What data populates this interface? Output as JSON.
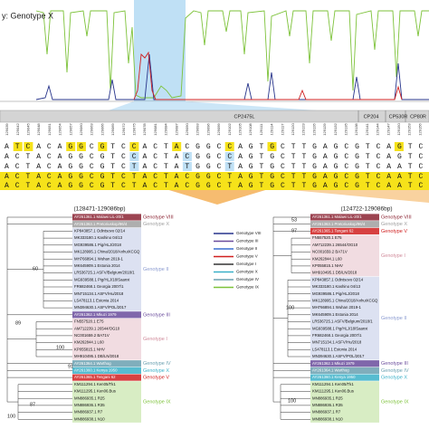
{
  "top": {
    "query_label": "y: Genotype X"
  },
  "genes": [
    {
      "label": "CP2475L"
    },
    {
      "label": "CP204"
    },
    {
      "label": "CP530R"
    },
    {
      "label": "CP80R"
    }
  ],
  "positions": [
    "129039",
    "129042",
    "129045",
    "129048",
    "129051",
    "129054",
    "129057",
    "129060",
    "129063",
    "129066",
    "129069",
    "129072",
    "129075",
    "129078",
    "129081",
    "129084",
    "129087",
    "129090",
    "129093",
    "129096",
    "129099",
    "129102",
    "129105",
    "129108",
    "129111",
    "129114",
    "129117",
    "129120",
    "129123",
    "129126",
    "129129",
    "129132",
    "129135",
    "129138",
    "129141",
    "129144",
    "129147",
    "129150",
    "129153",
    "129156"
  ],
  "sequences": [
    "ATCACAGGCGTCCACTACGGCCAGTGCTTGAGCGTCAGTC",
    "ACTACAGGCGTCCACTACGGCCAGTGCTTGAGCGTCAGTC",
    "ACTACAGGCGTCTACTATGGCTAGTGCTTGAGCGTCAATC",
    "ACTACAGGCGTCTACTACGGCTAGTGCTTGAGCGTCAATC",
    "ACTACAGGCGTCTACTACGGCTAGTGCTTGAGCGTCAATC"
  ],
  "legend": [
    {
      "label": "Genotype VIII",
      "color": "#27348b"
    },
    {
      "label": "Genotype III",
      "color": "#6a4c9c"
    },
    {
      "label": "Genotype II",
      "color": "#3a6fd0"
    },
    {
      "label": "Genotype V",
      "color": "#d02020"
    },
    {
      "label": "Genotype I",
      "color": "#333333"
    },
    {
      "label": "Genotype X",
      "color": "#39b0c8"
    },
    {
      "label": "Genotype IV",
      "color": "#6aa0b0"
    },
    {
      "label": "Genotype IX",
      "color": "#7dc23a"
    }
  ],
  "left_tree": {
    "range": "(128471-129086bp)",
    "taxa": [
      "AY261361.1 Malawi LiL-20/1",
      "AY261363.1 Pretoriuskop/96/4",
      "KP843857.1 Odintsovo 02/14",
      "MK333180.1 Kashino 04/13",
      "MG939586.1 Pig/HLJ/2018",
      "MK128995.1 China/2018/AnhuiXCGQ",
      "MH766894.1 Wuhan 2019-1",
      "MK645909.1 Estonia 2014",
      "LR536725.1 ASFV/Belgium/2018/1",
      "MG939588.1 Pig/HLJ/18/Saanxi",
      "FR682468.1 Georgia 2007/1",
      "MN715134.1 ASFV/Hu/2018",
      "LS478113.1 Estonia 2014",
      "MN394630.1 ASFV/POL/2017",
      "AY261362.1 Mkuzi 1979",
      "FN557520.1 E75",
      "AM712239.1 26544/OG10",
      "NC001659.2 BA71V",
      "KM262844.1 L60",
      "KP055815.1 NHV",
      "MH910495.1 DB/LN/2018",
      "AY261364.1 Warthog",
      "AY261360.1 Kenya 1950",
      "AY261365.1 Tengani 62",
      "KM111294.1 Ken05/Tk1",
      "KM111295.1 Ken06.Bus",
      "MN886935.1 R25",
      "MN886936.1 R35",
      "MN886937.1 R7",
      "MN886938.1 N10"
    ],
    "clades": [
      {
        "label": "Genotype VIII",
        "color": "#8b2332"
      },
      {
        "label": "Genotype X",
        "color": "#a0a0a0"
      },
      {
        "label": "Genotype II",
        "color": "#8a9ad0"
      },
      {
        "label": "Genotype III",
        "color": "#6a4c9c"
      },
      {
        "label": "Genotype I",
        "color": "#d08a9a"
      },
      {
        "label": "Genotype IV",
        "color": "#6aa0b0"
      },
      {
        "label": "Genotype X",
        "color": "#39b0c8"
      },
      {
        "label": "Genotype V",
        "color": "#d02020"
      },
      {
        "label": "Genotype IX",
        "color": "#7dc23a"
      }
    ],
    "bootstrap": [
      60,
      89,
      100,
      91,
      87,
      100
    ]
  },
  "right_tree": {
    "range": "(124722-129086bp)",
    "taxa": [
      "AY261361.1 Malawi LiL-20/1",
      "AY261363.1 Pretoriuskop/96/4",
      "AY261365.1 Tengani 62",
      "FN557520.1 E75",
      "AM712239.1 26544/OG10",
      "NC001659.2 BA71V",
      "KM262844.1 L60",
      "KP055815.1 NHV",
      "MH910495.1 DB/LN/2018",
      "KP843857.1 Odintsovo 02/14",
      "MK333180.1 Kashino 04/13",
      "MG939586.1 Pig/HLJ/2018",
      "MK128995.1 China/2018/AnhuiXCGQ",
      "MH766894.1 Wuhan 2019-1",
      "MK645909.1 Estonia 2014",
      "LR536725.1 ASFV/Belgium/2018/1",
      "MG939588.1 Pig/HLJ/18/Saanxi",
      "FR682468.1 Georgia 2007/1",
      "MN715134.1 ASFV/Hu/2018",
      "LS478113.1 Estonia 2014",
      "MN394630.1 ASFV/POL/2017",
      "AY261362.1 Mkuzi 1979",
      "AY261364.1 Warthog",
      "AY261360.1 Kenya 1950",
      "KM111294.1 Ken05/Tk1",
      "KM111295.1 Ken06.Bus",
      "MN886935.1 R25",
      "MN886936.1 R35",
      "MN886937.1 R7",
      "MN886938.1 N10"
    ],
    "clades": [
      {
        "label": "Genotype VIII",
        "color": "#8b2332"
      },
      {
        "label": "Genotype X",
        "color": "#a0a0a0"
      },
      {
        "label": "Genotype V",
        "color": "#d02020"
      },
      {
        "label": "Genotype I",
        "color": "#d08a9a"
      },
      {
        "label": "Genotype II",
        "color": "#8a9ad0"
      },
      {
        "label": "Genotype III",
        "color": "#6a4c9c"
      },
      {
        "label": "Genotype IV",
        "color": "#6aa0b0"
      },
      {
        "label": "Genotype X",
        "color": "#39b0c8"
      },
      {
        "label": "Genotype IX",
        "color": "#7dc23a"
      }
    ],
    "bootstrap": [
      53,
      97,
      100,
      100
    ]
  }
}
